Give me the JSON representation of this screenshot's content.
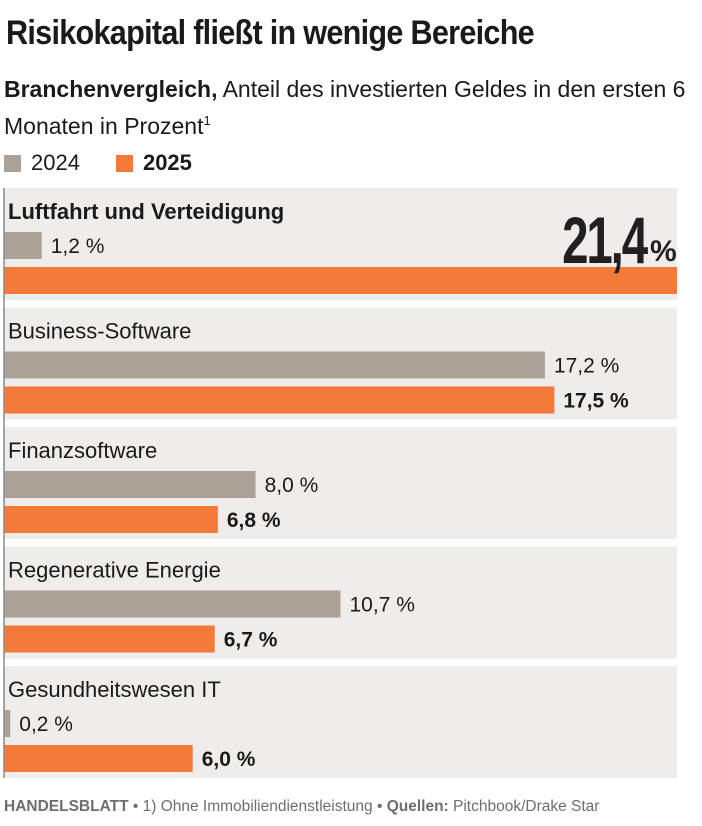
{
  "header": {
    "title": "Risikokapital fließt in wenige Bereiche",
    "subtitle_bold": "Branchenvergleich,",
    "subtitle_rest": " Anteil des investierten Geldes in den ersten 6 Monaten in Prozent",
    "footnote_marker": "1"
  },
  "legend": [
    {
      "label": "2024",
      "color": "#aba197"
    },
    {
      "label": "2025",
      "color": "#f47a3a"
    }
  ],
  "chart_data": {
    "type": "bar",
    "orientation": "horizontal",
    "title": "Risikokapital fließt in wenige Bereiche",
    "unit": "%",
    "categories": [
      "Luftfahrt und Verteidigung",
      "Business-Software",
      "Finanzsoftware",
      "Regenerative Energie",
      "Gesundheitswesen IT"
    ],
    "series": [
      {
        "name": "2024",
        "color": "#aba197",
        "values": [
          1.2,
          17.2,
          8.0,
          10.7,
          0.2
        ],
        "labels": [
          "1,2 %",
          "17,2 %",
          "8,0 %",
          "10,7 %",
          "0,2 %"
        ]
      },
      {
        "name": "2025",
        "color": "#f47a3a",
        "values": [
          21.4,
          17.5,
          6.8,
          6.7,
          6.0
        ],
        "labels": [
          "21,4 %",
          "17,5 %",
          "6,8 %",
          "6,7 %",
          "6,0 %"
        ]
      }
    ],
    "highlight": {
      "value": "21,4",
      "unit": "%"
    },
    "xlim": [
      0,
      21.4
    ]
  },
  "footer": {
    "brand": "HANDELSBLATT",
    "note": " • 1) Ohne Immobiliendienstleistung • ",
    "source_label": "Quellen:",
    "source_text": " Pitchbook/Drake Star"
  }
}
